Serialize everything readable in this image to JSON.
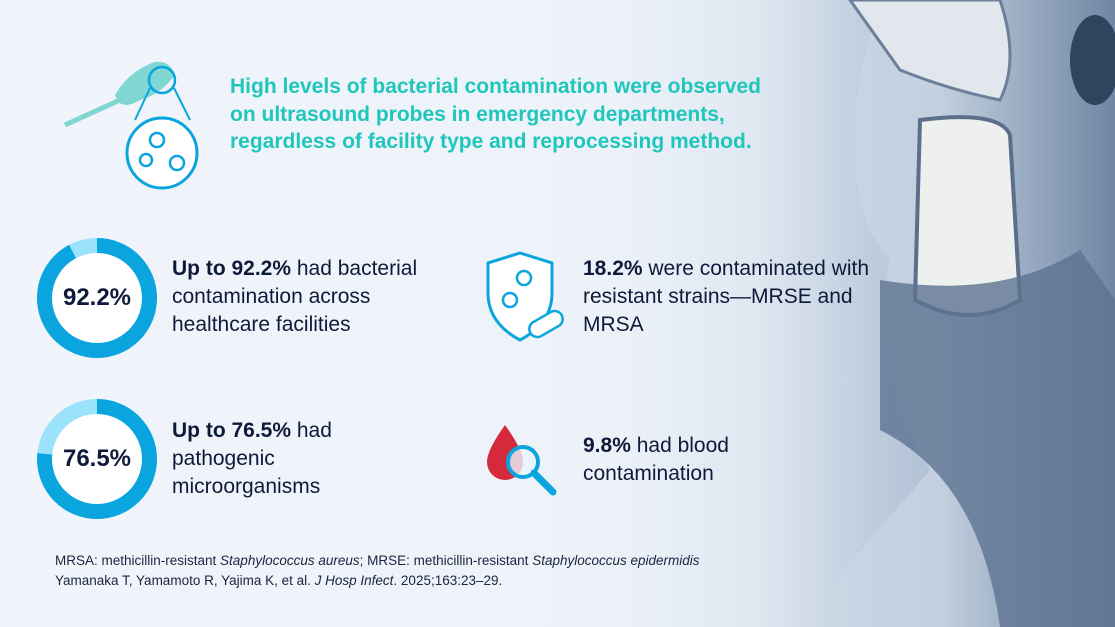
{
  "headline": "High levels of bacterial contamination were observed on ultrasound probes in emergency departments, regardless of facility type and reprocessing method.",
  "colors": {
    "headline": "#1ec6bb",
    "donut_fill": "#0aa5de",
    "donut_track": "#9be3fb",
    "text": "#0f1a3a"
  },
  "stats": [
    {
      "value": 92.2,
      "donut_label": "92.2%",
      "bold": "Up to 92.2%",
      "text": " had bacterial contamination across healthcare facilities"
    },
    {
      "value": 76.5,
      "donut_label": "76.5%",
      "bold": "Up to 76.5%",
      "text": " had pathogenic microorganisms"
    },
    {
      "icon": "shield-bacteria-pill-icon",
      "bold": "18.2%",
      "text": " were contaminated with resistant strains—MRSE and MRSA"
    },
    {
      "icon": "blood-drop-magnifier-icon",
      "bold": "9.8%",
      "text": " had blood contamination"
    }
  ],
  "footnote": {
    "abbrev": [
      {
        "t": "MRSA: methicillin-resistant ",
        "i": false
      },
      {
        "t": "Staphylococcus aureus",
        "i": true
      },
      {
        "t": "; MRSE: methicillin-resistant ",
        "i": false
      },
      {
        "t": "Staphylococcus epidermidis",
        "i": true
      }
    ],
    "citation": [
      {
        "t": "Yamanaka T, Yamamoto R, Yajima K, et al. ",
        "i": false
      },
      {
        "t": "J Hosp Infect",
        "i": true
      },
      {
        "t": ". 2025;163:23–29.",
        "i": false
      }
    ]
  }
}
